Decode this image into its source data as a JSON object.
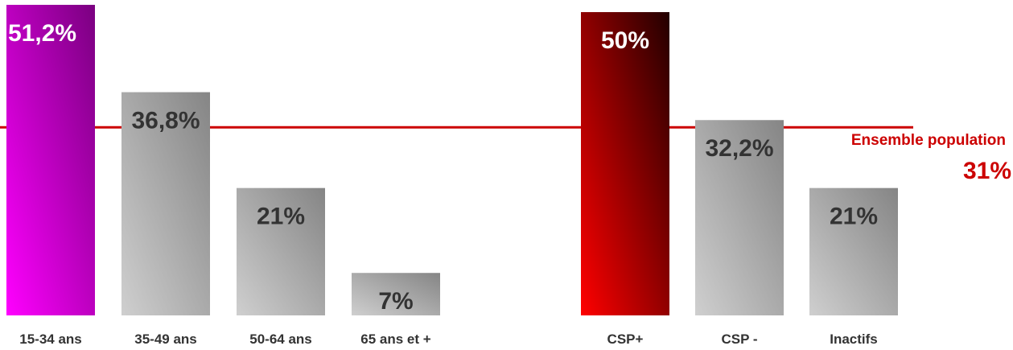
{
  "chart_data": {
    "type": "bar",
    "groups": [
      {
        "categories": [
          "15-34 ans",
          "35-49 ans",
          "50-64 ans",
          "65 ans et +"
        ],
        "values": [
          51.2,
          36.8,
          21,
          7
        ],
        "value_labels": [
          "51,2%",
          "36,8%",
          "21%",
          "7%"
        ],
        "highlight_index": 0,
        "highlight_color": "#c010c0"
      },
      {
        "categories": [
          "CSP+",
          "CSP -",
          "Inactifs"
        ],
        "values": [
          50,
          32.2,
          21
        ],
        "value_labels": [
          "50%",
          "32,2%",
          "21%"
        ],
        "highlight_index": 0,
        "highlight_color": "#cc0000"
      }
    ],
    "reference_line": {
      "label": "Ensemble population",
      "value": 31,
      "value_label": "31%",
      "color": "#cc0000"
    },
    "ylim": [
      0,
      51.2
    ],
    "grid": false,
    "colors": {
      "neutral_bar_light": "#c8c8c8",
      "neutral_bar_dark": "#8a8a8a",
      "magenta_light": "#ff00ff",
      "magenta_dark": "#800080",
      "red_light": "#ff0000",
      "red_dark": "#2a0000",
      "label_dark": "#333333",
      "label_white": "#ffffff"
    }
  }
}
